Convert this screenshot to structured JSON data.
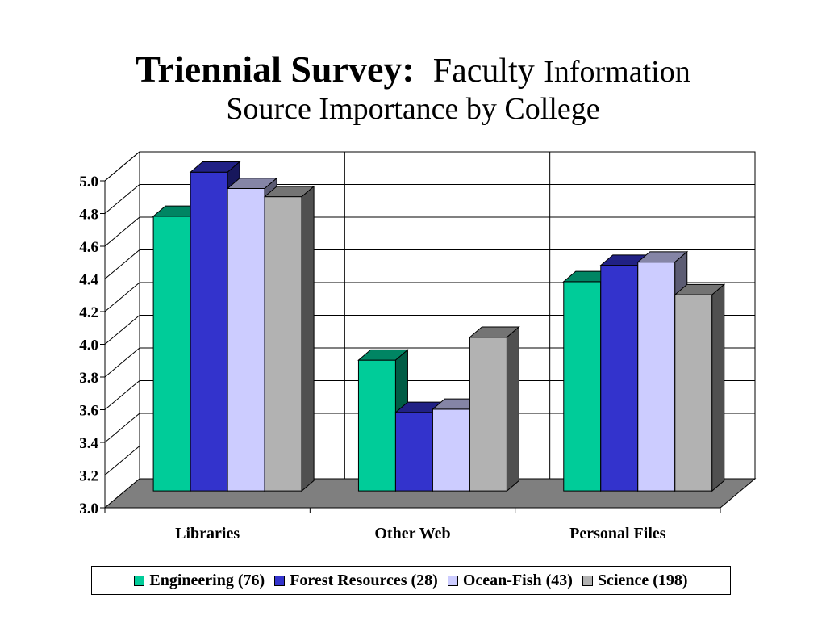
{
  "slide": {
    "title_bold": "Triennial Survey:",
    "title_rest1": "Faculty",
    "title_rest2": "Information",
    "title_line2": "Source Importance by College"
  },
  "chart_data": {
    "type": "bar",
    "three_d": true,
    "categories": [
      "Libraries",
      "Other Web",
      "Personal Files"
    ],
    "series": [
      {
        "name": "Engineering (76)",
        "color": "#00CC99",
        "values": [
          4.68,
          3.8,
          4.28
        ]
      },
      {
        "name": "Forest Resources (28)",
        "color": "#3333CC",
        "values": [
          4.95,
          3.48,
          4.38
        ]
      },
      {
        "name": "Ocean-Fish (43)",
        "color": "#CCCCFF",
        "values": [
          4.85,
          3.5,
          4.4
        ]
      },
      {
        "name": "Science (198)",
        "color": "#B2B2B2",
        "values": [
          4.8,
          3.94,
          4.2
        ]
      }
    ],
    "ylim": [
      3.0,
      5.0
    ],
    "yticks": [
      "3.0",
      "3.2",
      "3.4",
      "3.6",
      "3.8",
      "4.0",
      "4.2",
      "4.4",
      "4.6",
      "4.8",
      "5.0"
    ],
    "grid": true,
    "legend_position": "bottom"
  }
}
